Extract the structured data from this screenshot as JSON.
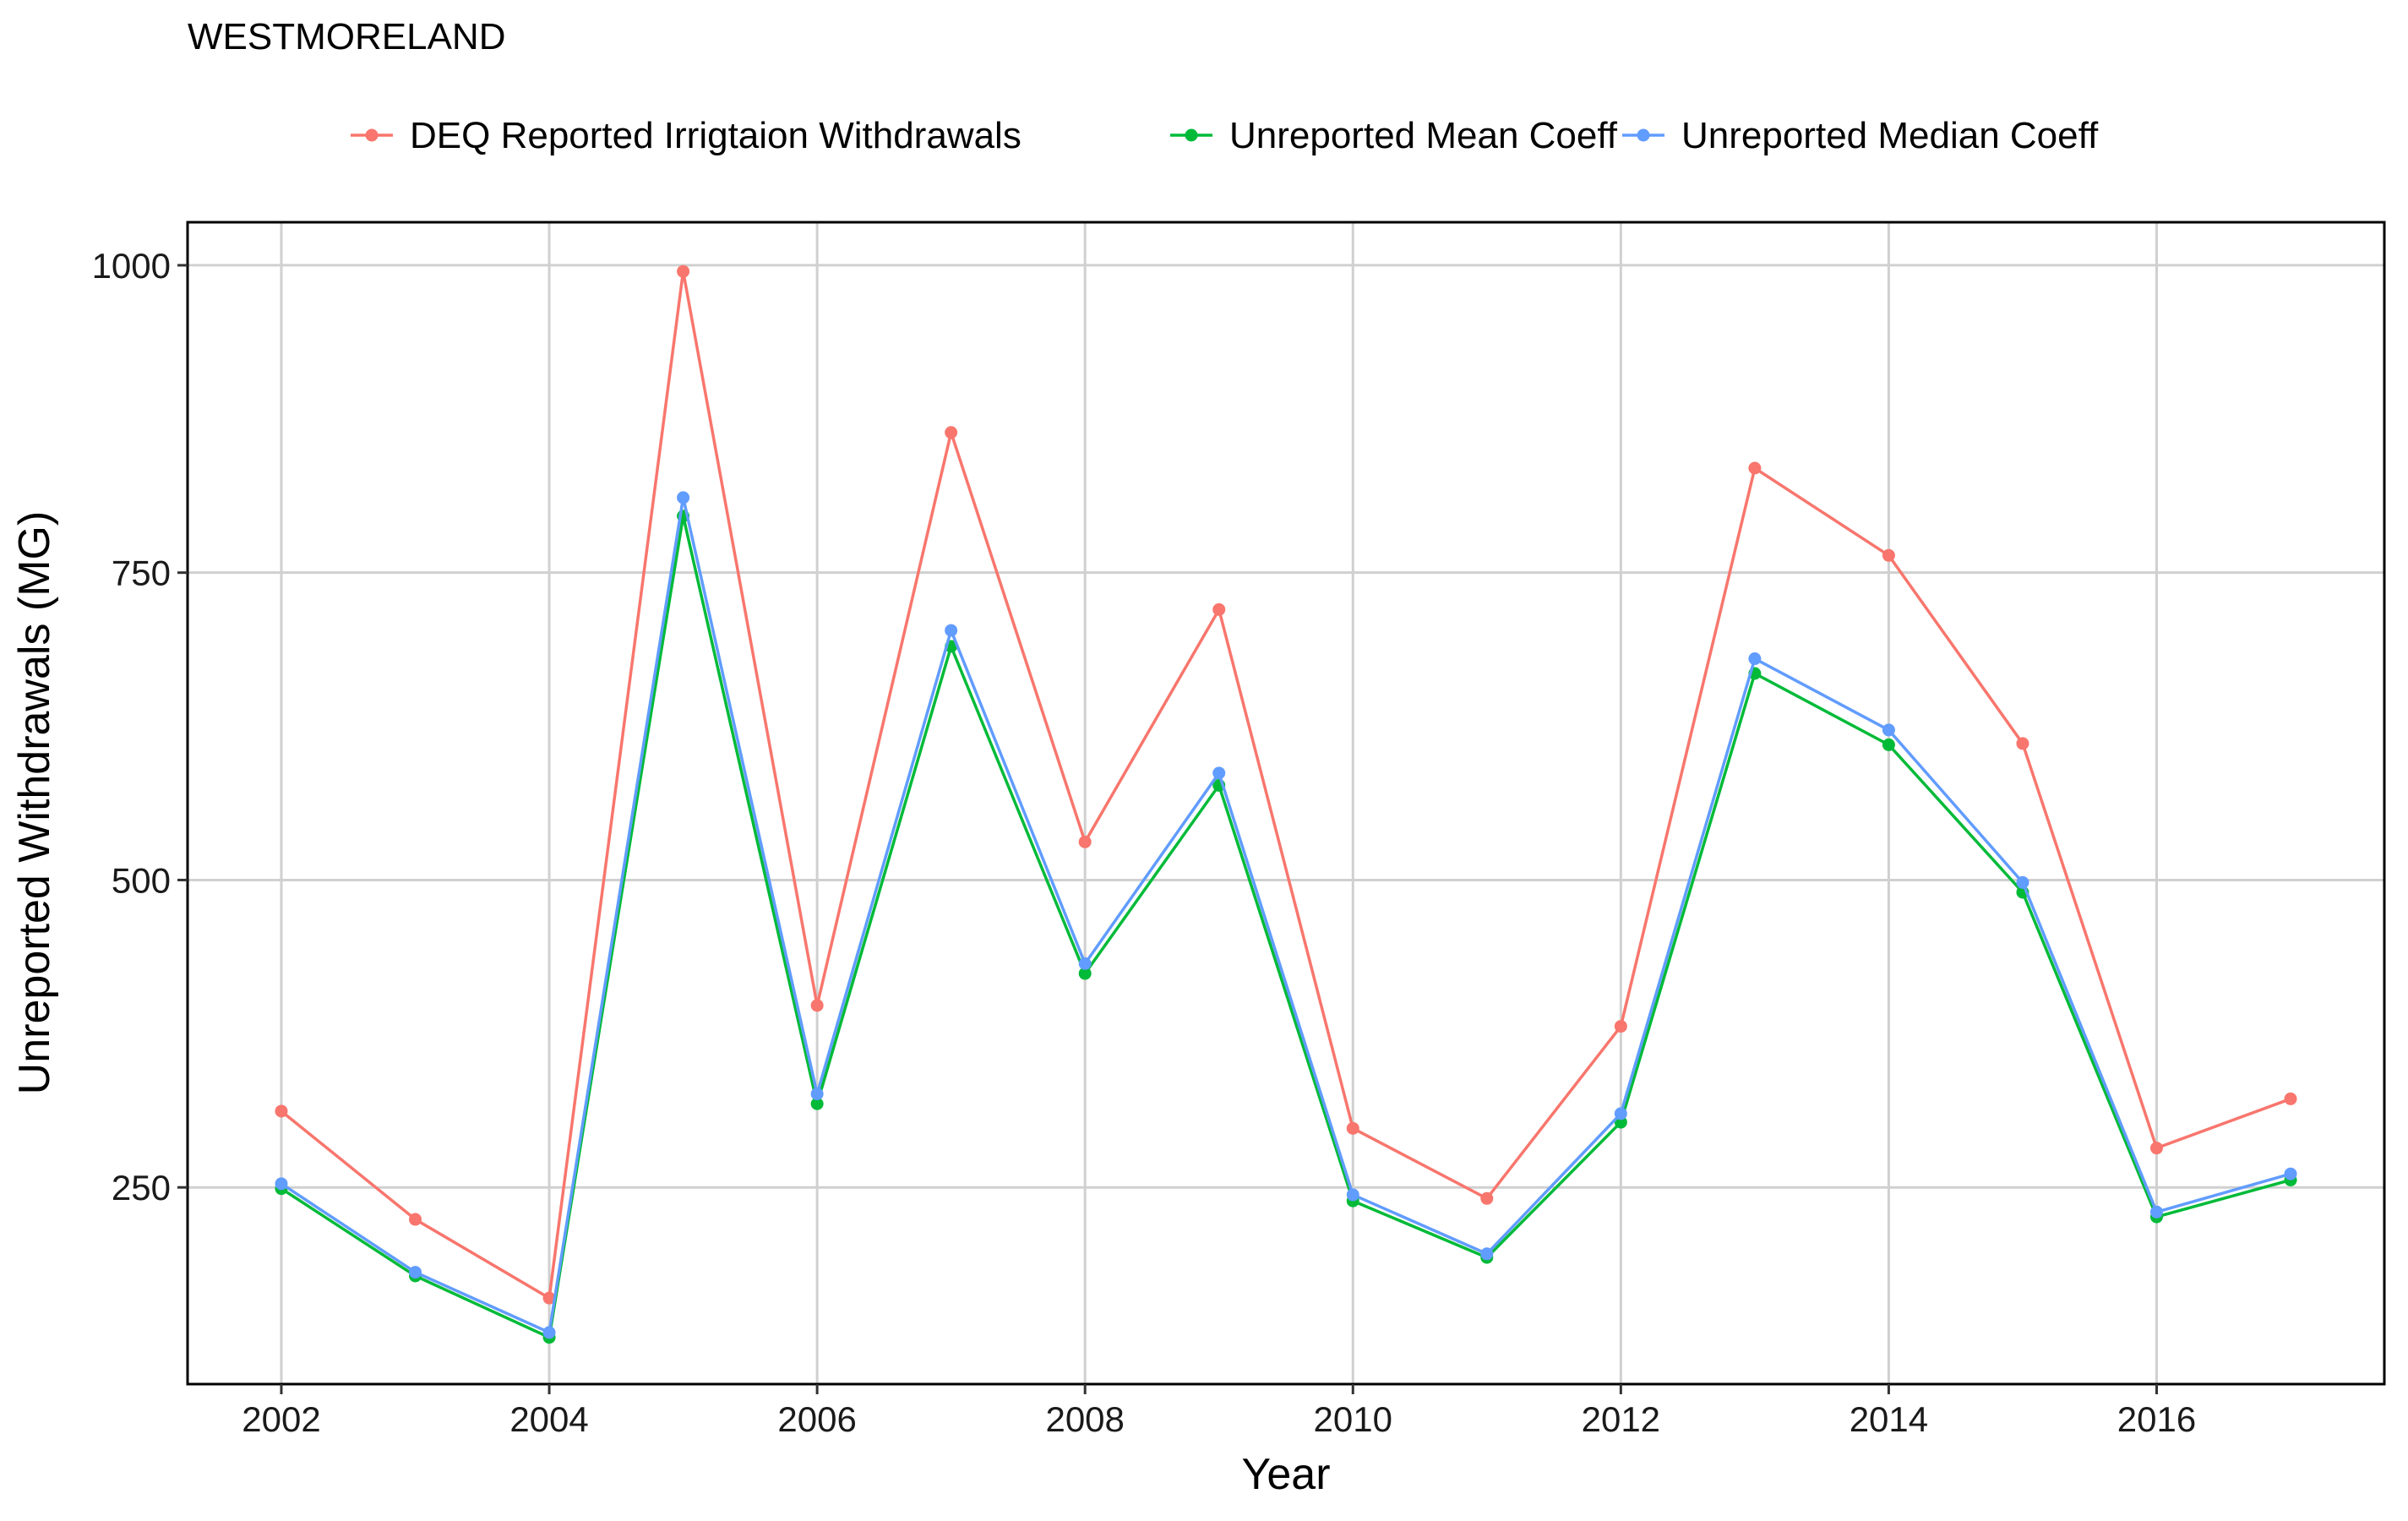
{
  "chart_data": {
    "type": "line",
    "title": "WESTMORELAND",
    "xlabel": "Year",
    "ylabel": "Unreported Withdrawals (MG)",
    "x": [
      2002,
      2003,
      2004,
      2005,
      2006,
      2007,
      2008,
      2009,
      2010,
      2011,
      2012,
      2013,
      2014,
      2015,
      2016,
      2017
    ],
    "xlim": [
      2001.3,
      2017.7
    ],
    "ylim": [
      90,
      1035
    ],
    "x_ticks": [
      2002,
      2004,
      2006,
      2008,
      2010,
      2012,
      2014,
      2016
    ],
    "y_ticks": [
      250,
      500,
      750,
      1000
    ],
    "grid": true,
    "legend_position": "top",
    "series": [
      {
        "name": "DEQ Reported Irrigtaion Withdrawals",
        "color": "#F8766D",
        "values": [
          312,
          224,
          160,
          995,
          398,
          864,
          531,
          720,
          298,
          241,
          381,
          835,
          764,
          611,
          282,
          322
        ]
      },
      {
        "name": "Unreported Mean Coeff",
        "color": "#00BA38",
        "values": [
          249,
          178,
          128,
          796,
          318,
          690,
          424,
          577,
          239,
          193,
          303,
          668,
          610,
          490,
          226,
          256
        ]
      },
      {
        "name": "Unreported Median Coeff",
        "color": "#619CFF",
        "values": [
          253,
          181,
          132,
          811,
          326,
          703,
          432,
          587,
          244,
          196,
          310,
          680,
          622,
          498,
          230,
          261
        ]
      }
    ]
  }
}
